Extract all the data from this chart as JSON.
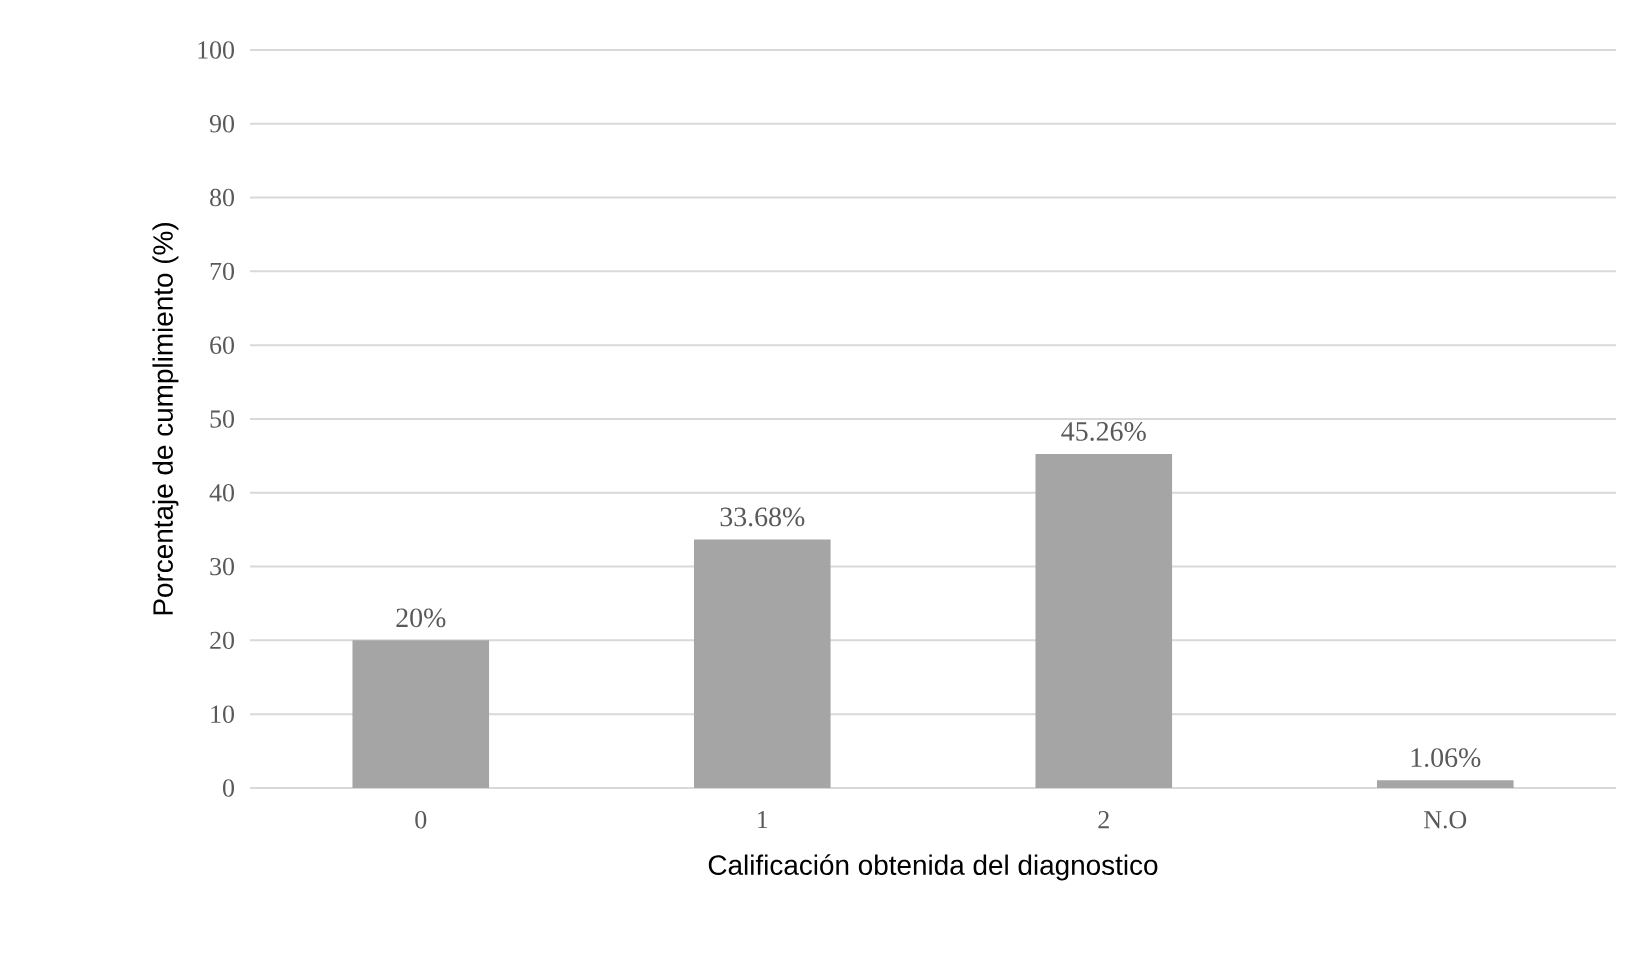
{
  "chart_data": {
    "type": "bar",
    "xlabel": "Calificación obtenida del diagnostico",
    "ylabel": "Porcentaje de cumplimiento  (%)",
    "categories": [
      "0",
      "1",
      "2",
      "N.O"
    ],
    "values": [
      20,
      33.68,
      45.26,
      1.06
    ],
    "value_labels": [
      "20%",
      "33.68%",
      "45.26%",
      "1.06%"
    ],
    "color": "#a5a5a5",
    "ylim": [
      0,
      100
    ],
    "yticks": [
      0,
      10,
      20,
      30,
      40,
      50,
      60,
      70,
      80,
      90,
      100
    ],
    "grid": "y"
  }
}
